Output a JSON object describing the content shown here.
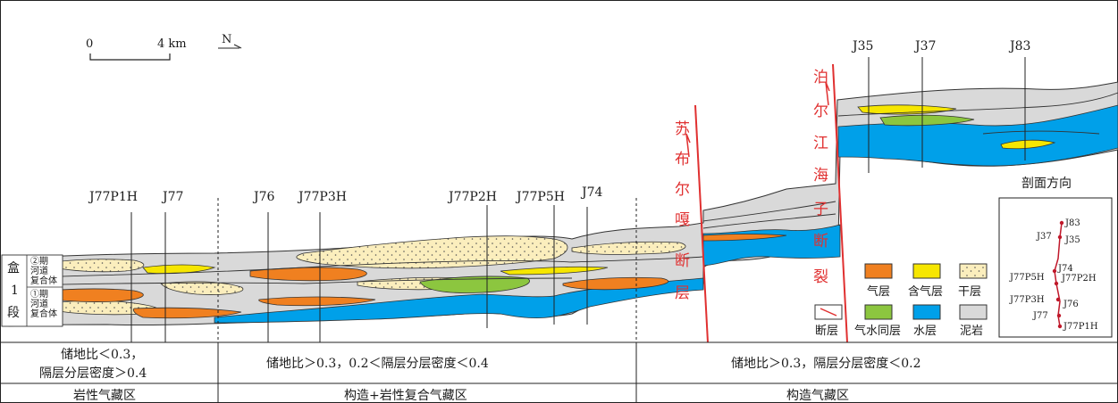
{
  "scale": {
    "zero": "0",
    "max": "4 km",
    "north": "N"
  },
  "wells": [
    {
      "label": "J77P1H"
    },
    {
      "label": "J77"
    },
    {
      "label": "J76"
    },
    {
      "label": "J77P3H"
    },
    {
      "label": "J77P2H"
    },
    {
      "label": "J77P5H"
    },
    {
      "label": "J74"
    },
    {
      "label": "J35"
    },
    {
      "label": "J37"
    },
    {
      "label": "J83"
    }
  ],
  "faults": [
    {
      "chars": [
        "苏",
        "布",
        "尔",
        "嘎",
        "断",
        "层"
      ]
    },
    {
      "chars": [
        "泊",
        "尔",
        "江",
        "海",
        "子",
        "断",
        "裂"
      ]
    }
  ],
  "member": {
    "chars": [
      "盒",
      "1",
      "段"
    ],
    "upper": [
      "②期",
      "河道",
      "复合体"
    ],
    "lower": [
      "①期",
      "河道",
      "复合体"
    ]
  },
  "legend": [
    {
      "label": "气层",
      "color": "#f08020"
    },
    {
      "label": "含气层",
      "color": "#f6e600"
    },
    {
      "label": "干层",
      "color": "#fbeebd"
    },
    {
      "label": "断层",
      "color": "#ffffff"
    },
    {
      "label": "气水同层",
      "color": "#8cc63f"
    },
    {
      "label": "水层",
      "color": "#00a0e9"
    },
    {
      "label": "泥岩",
      "color": "#d9d9d9"
    }
  ],
  "inset": {
    "title": "剖面方向",
    "labels": [
      "J83",
      "J37",
      "J35",
      "J74",
      "J77P5H",
      "J77P2H",
      "J77P3H",
      "J76",
      "J77",
      "J77P1H"
    ]
  },
  "criteria": [
    [
      "储地比＜0.3，",
      "隔层分层密度＞0.4"
    ],
    [
      "储地比＞0.3，0.2＜隔层分层密度＜0.4"
    ],
    [
      "储地比＞0.3，隔层分层密度＜0.2"
    ]
  ],
  "zones": [
    "岩性气藏区",
    "构造+岩性复合气藏区",
    "构造气藏区"
  ],
  "colors": {
    "gas": "#f08020",
    "gas_bearing": "#f6e600",
    "dry": "#fbeebd",
    "gas_water": "#8cc63f",
    "water": "#00a0e9",
    "mudstone": "#d9d9d9",
    "fault": "#e03030"
  }
}
